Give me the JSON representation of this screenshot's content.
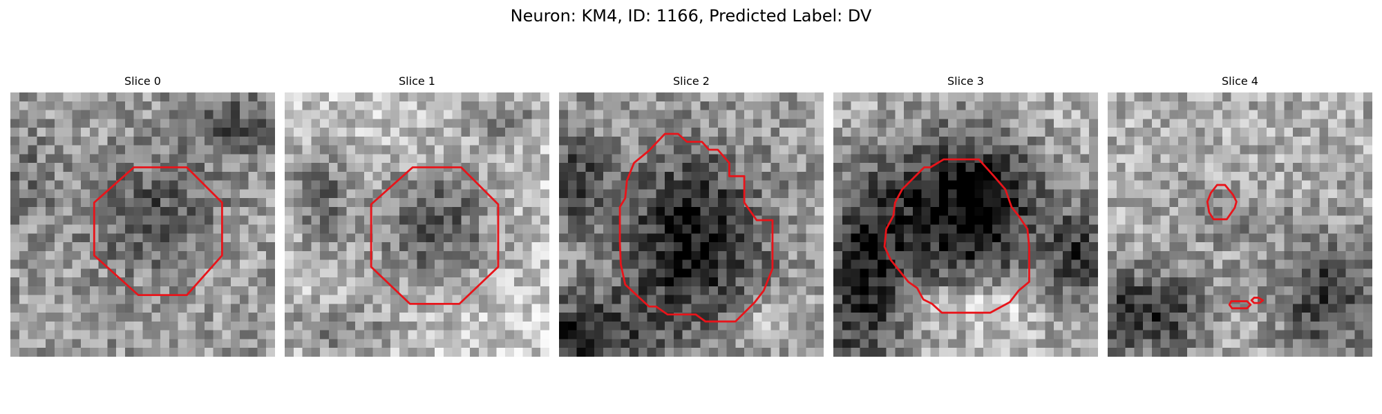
{
  "figure": {
    "title": "Neuron: KM4, ID: 1166, Predicted Label: DV"
  },
  "panels": [
    {
      "title": "Slice 0"
    },
    {
      "title": "Slice 1"
    },
    {
      "title": "Slice 2"
    },
    {
      "title": "Slice 3"
    },
    {
      "title": "Slice 4"
    }
  ],
  "colors": {
    "contour": "#e8141a",
    "background": "#ffffff"
  }
}
